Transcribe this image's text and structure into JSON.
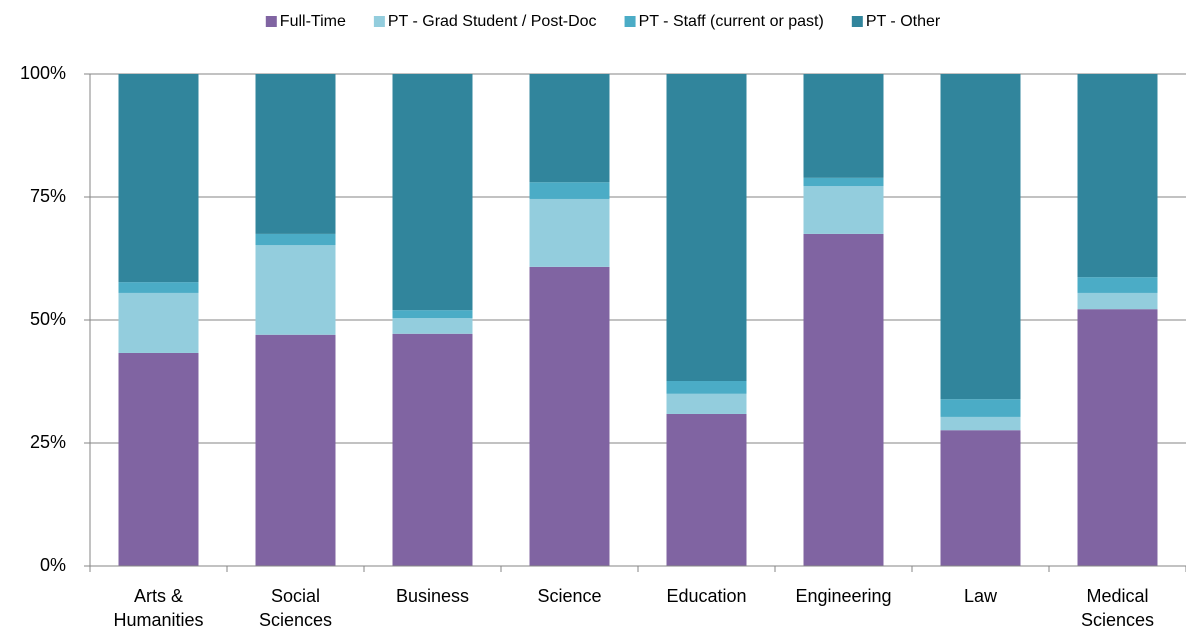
{
  "chart_data": {
    "type": "stacked_bar",
    "categories": [
      "Arts & Humanities",
      "Social Sciences",
      "Business",
      "Science",
      "Education",
      "Engineering",
      "Law",
      "Medical Sciences"
    ],
    "series": [
      {
        "name": "Full-Time",
        "color": "#8064a2",
        "values": [
          43.3,
          47.0,
          47.2,
          60.8,
          30.9,
          67.5,
          27.6,
          52.2
        ]
      },
      {
        "name": "PT - Grad Student / Post-Doc",
        "color": "#93cddd",
        "values": [
          12.2,
          18.2,
          3.2,
          13.8,
          4.1,
          9.7,
          2.7,
          3.3
        ]
      },
      {
        "name": "PT - Staff (current or past)",
        "color": "#4bacc6",
        "values": [
          2.2,
          2.3,
          1.6,
          3.4,
          2.6,
          1.7,
          3.6,
          3.2
        ]
      },
      {
        "name": "PT - Other",
        "color": "#31859c",
        "values": [
          42.3,
          32.5,
          48.0,
          22.0,
          62.4,
          21.1,
          66.1,
          41.3
        ]
      }
    ],
    "ylim": [
      0,
      100
    ],
    "yticks": [
      {
        "value": 0,
        "label": "0%"
      },
      {
        "value": 25,
        "label": "25%"
      },
      {
        "value": 50,
        "label": "50%"
      },
      {
        "value": 75,
        "label": "75%"
      },
      {
        "value": 100,
        "label": "100%"
      }
    ],
    "grid": true,
    "legend": "top"
  }
}
